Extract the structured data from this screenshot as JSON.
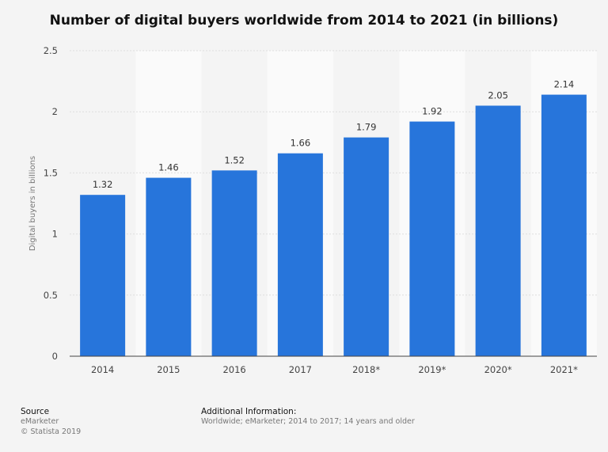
{
  "chart_data": {
    "type": "bar",
    "title": "Number of digital buyers worldwide from 2014 to 2021 (in billions)",
    "xlabel": "",
    "ylabel": "Digital buyers in billions",
    "categories": [
      "2014",
      "2015",
      "2016",
      "2017",
      "2018*",
      "2019*",
      "2020*",
      "2021*"
    ],
    "values": [
      1.32,
      1.46,
      1.52,
      1.66,
      1.79,
      1.92,
      2.05,
      2.14
    ],
    "value_labels": [
      "1.32",
      "1.46",
      "1.52",
      "1.66",
      "1.79",
      "1.92",
      "2.05",
      "2.14"
    ],
    "ylim": [
      0,
      2.5
    ],
    "yticks": [
      0,
      0.5,
      1,
      1.5,
      2,
      2.5
    ],
    "ytick_labels": [
      "0",
      "0.5",
      "1",
      "1.5",
      "2",
      "2.5"
    ],
    "grid": true,
    "bar_color": "#2775db"
  },
  "footer": {
    "source_heading": "Source",
    "source_lines": [
      "eMarketer",
      "© Statista 2019"
    ],
    "info_heading": "Additional Information:",
    "info_text": "Worldwide; eMarketer; 2014 to 2017; 14 years and older"
  }
}
